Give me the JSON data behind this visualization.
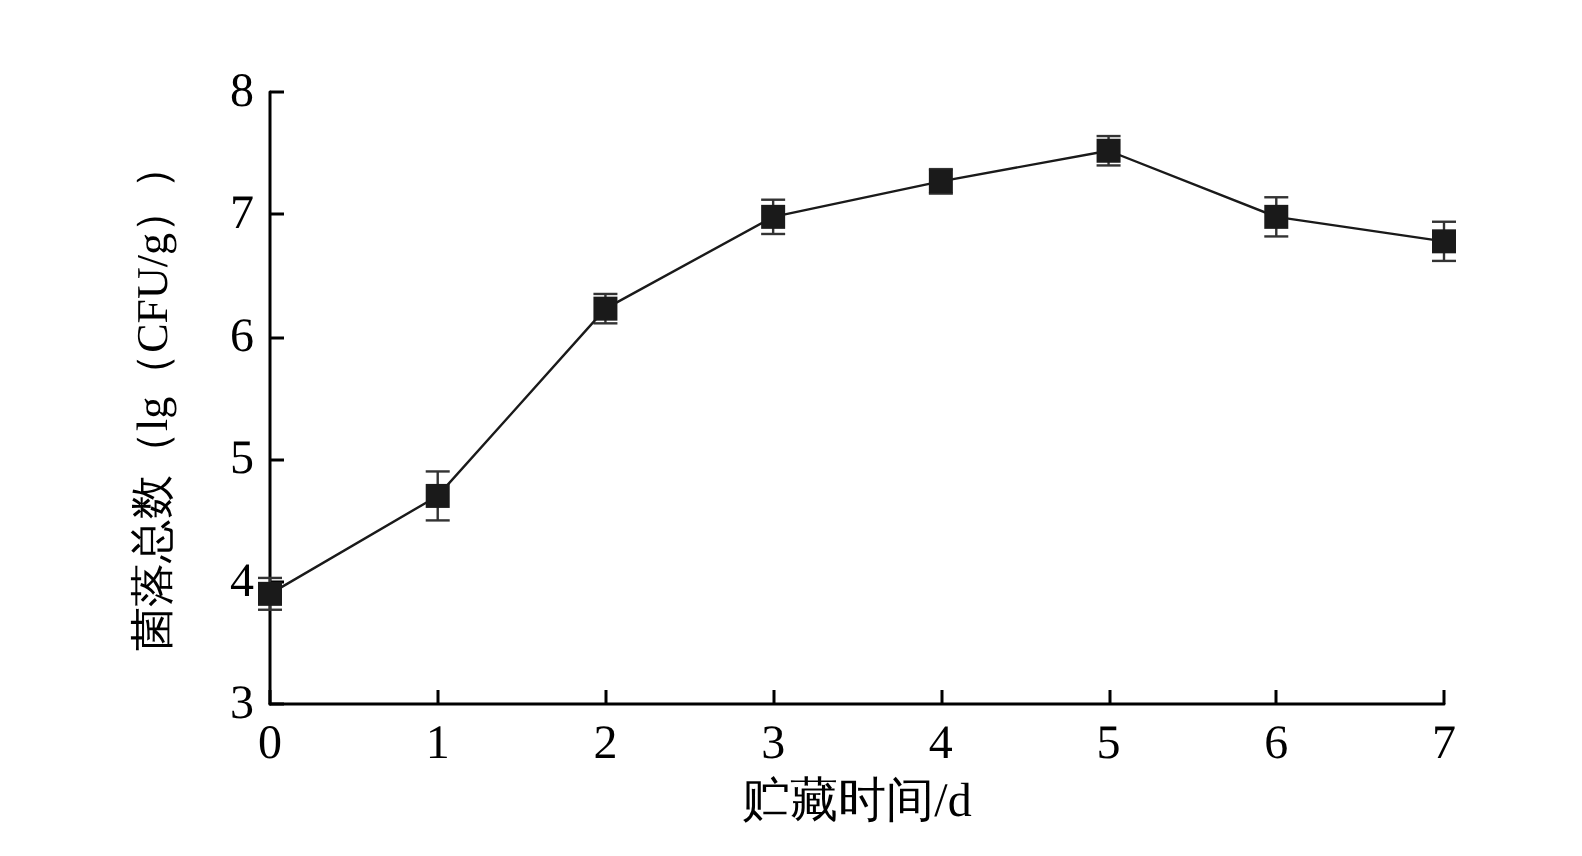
{
  "chart_data": {
    "type": "line",
    "xlabel": "贮藏时间/d",
    "ylabel": "菌落总数（lg（CFU/g））",
    "x": [
      0,
      1,
      2,
      3,
      4,
      5,
      6,
      7
    ],
    "values": [
      3.9,
      4.7,
      6.23,
      6.98,
      7.27,
      7.52,
      6.98,
      6.78
    ],
    "errors": [
      0.13,
      0.2,
      0.12,
      0.14,
      0.1,
      0.12,
      0.16,
      0.16
    ],
    "color": "#1a1a1a",
    "marker": "square",
    "line_style": "solid",
    "xlim": [
      0,
      7
    ],
    "xticks": [
      0,
      1,
      2,
      3,
      4,
      5,
      6,
      7
    ],
    "ylim": [
      3,
      8
    ],
    "yticks": [
      3,
      4,
      5,
      6,
      7,
      8
    ]
  }
}
